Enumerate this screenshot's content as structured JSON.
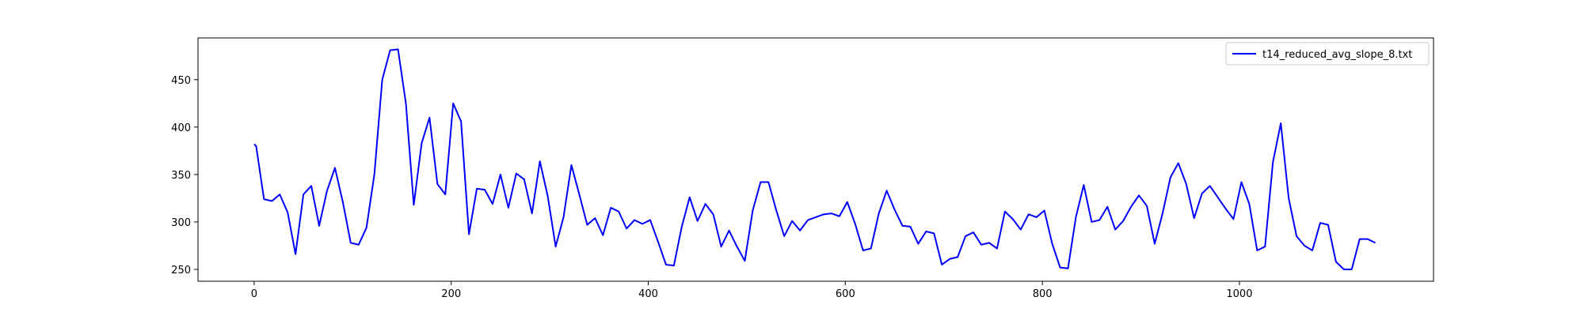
{
  "chart_data": {
    "type": "line",
    "title": "",
    "xlabel": "",
    "ylabel": "",
    "xlim": [
      -57,
      1197
    ],
    "ylim": [
      237.5,
      494
    ],
    "xticks": [
      0,
      200,
      400,
      600,
      800,
      1000
    ],
    "yticks": [
      250,
      300,
      350,
      400,
      450
    ],
    "grid": false,
    "legend_position": "top-right",
    "series": [
      {
        "name": "t14_reduced_avg_slope_8.txt",
        "color": "#0000ff",
        "x": [
          0,
          2,
          10,
          18,
          26,
          34,
          42,
          50,
          58,
          66,
          74,
          82,
          90,
          98,
          106,
          114,
          122,
          130,
          138,
          146,
          154,
          162,
          170,
          178,
          186,
          194,
          202,
          210,
          218,
          226,
          234,
          242,
          250,
          258,
          266,
          274,
          282,
          290,
          298,
          306,
          314,
          322,
          330,
          338,
          346,
          354,
          362,
          370,
          378,
          386,
          394,
          402,
          410,
          418,
          426,
          434,
          442,
          450,
          458,
          466,
          474,
          482,
          490,
          498,
          506,
          514,
          522,
          530,
          538,
          546,
          554,
          562,
          570,
          578,
          586,
          594,
          602,
          610,
          618,
          626,
          634,
          642,
          650,
          658,
          666,
          674,
          682,
          690,
          698,
          706,
          714,
          722,
          730,
          738,
          746,
          754,
          762,
          770,
          778,
          786,
          794,
          802,
          810,
          818,
          826,
          834,
          842,
          850,
          858,
          866,
          874,
          882,
          890,
          898,
          906,
          914,
          922,
          930,
          938,
          946,
          954,
          962,
          970,
          978,
          986,
          994,
          1002,
          1010,
          1018,
          1026,
          1034,
          1042,
          1050,
          1058,
          1066,
          1074,
          1082,
          1090,
          1098,
          1106,
          1114,
          1122,
          1130,
          1138
        ],
        "y": [
          382,
          380,
          324,
          322,
          329,
          310,
          266,
          329,
          338,
          296,
          333,
          357,
          321,
          278,
          276,
          294,
          350,
          450,
          481,
          482,
          425,
          318,
          383,
          410,
          340,
          329,
          425,
          406,
          287,
          335,
          334,
          319,
          350,
          315,
          351,
          345,
          309,
          364,
          327,
          274,
          305,
          360,
          329,
          297,
          304,
          286,
          315,
          311,
          293,
          302,
          298,
          302,
          279,
          255,
          254,
          295,
          326,
          301,
          319,
          308,
          274,
          291,
          274,
          259,
          312,
          342,
          342,
          312,
          285,
          301,
          291,
          302,
          305,
          308,
          309,
          306,
          321,
          298,
          270,
          272,
          309,
          333,
          313,
          296,
          295,
          277,
          290,
          288,
          255,
          261,
          263,
          285,
          289,
          276,
          278,
          272,
          311,
          303,
          292,
          308,
          305,
          312,
          277,
          252,
          251,
          305,
          339,
          300,
          302,
          316,
          292,
          301,
          316,
          328,
          317,
          277,
          309,
          347,
          362,
          340,
          304,
          330,
          338,
          326,
          314,
          303,
          342,
          319,
          270,
          274,
          363,
          404,
          325,
          285,
          275,
          270,
          299,
          297,
          258,
          250,
          250,
          282,
          282,
          278
        ]
      }
    ]
  }
}
